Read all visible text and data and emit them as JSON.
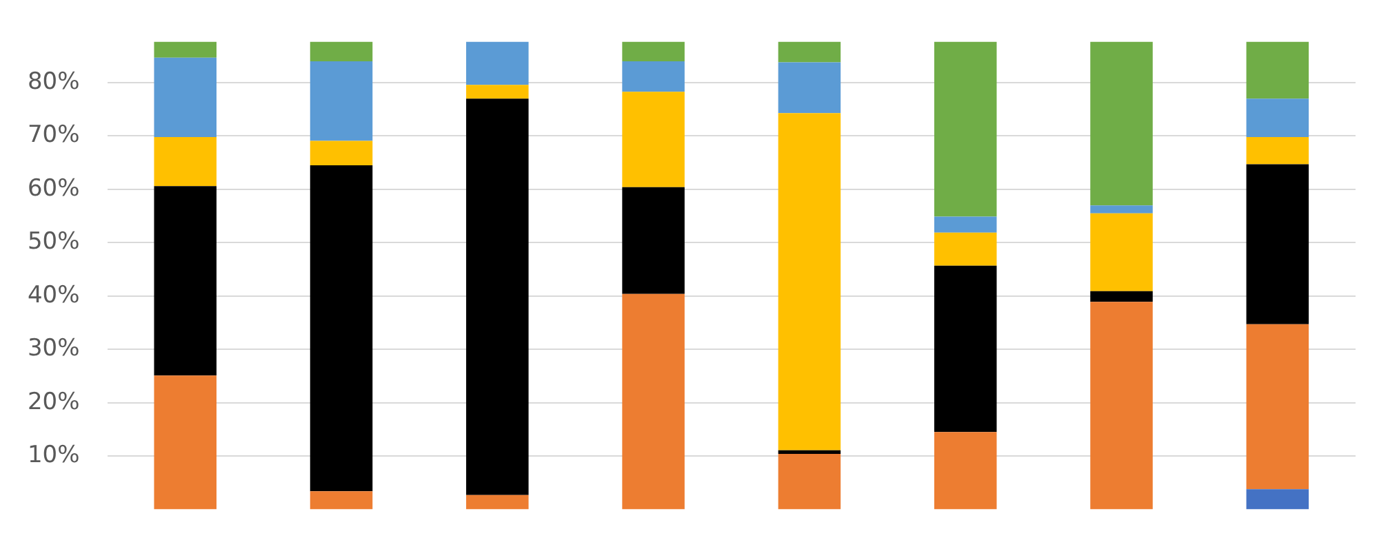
{
  "chart_data": {
    "type": "bar",
    "stacked": true,
    "categories": [
      null,
      null,
      null,
      null,
      null,
      null,
      null,
      null
    ],
    "series": [
      {
        "color": "#4472c4",
        "values": [
          null,
          null,
          null,
          null,
          null,
          null,
          null,
          3.8
        ]
      },
      {
        "color": "#ed7d31",
        "values": [
          25.1,
          3.4,
          2.7,
          40.4,
          10.4,
          14.5,
          38.9,
          30.9
        ]
      },
      {
        "color": "#000000",
        "values": [
          35.5,
          61.1,
          74.3,
          20.0,
          0.7,
          31.2,
          2.0,
          30.0
        ]
      },
      {
        "color": "#ffc000",
        "values": [
          9.2,
          4.6,
          2.6,
          17.9,
          63.2,
          6.2,
          14.6,
          5.1
        ]
      },
      {
        "color": "#5b9bd5",
        "values": [
          14.9,
          14.9,
          8.1,
          5.7,
          9.5,
          3.0,
          1.5,
          7.2
        ]
      },
      {
        "color": "#70ad47",
        "values": [
          3.0,
          3.7,
          null,
          3.7,
          3.9,
          32.8,
          30.7,
          10.7
        ]
      }
    ],
    "ylim": [
      0,
      87.7
    ],
    "yticks": [
      {
        "value": 10,
        "label": "10%"
      },
      {
        "value": 20,
        "label": "20%"
      },
      {
        "value": 30,
        "label": "30%"
      },
      {
        "value": 40,
        "label": "40%"
      },
      {
        "value": 50,
        "label": "50%"
      },
      {
        "value": 60,
        "label": "60%"
      },
      {
        "value": 70,
        "label": "70%"
      },
      {
        "value": 80,
        "label": "80%"
      }
    ],
    "grid": "y",
    "tick_labels": "y",
    "legend": false
  }
}
